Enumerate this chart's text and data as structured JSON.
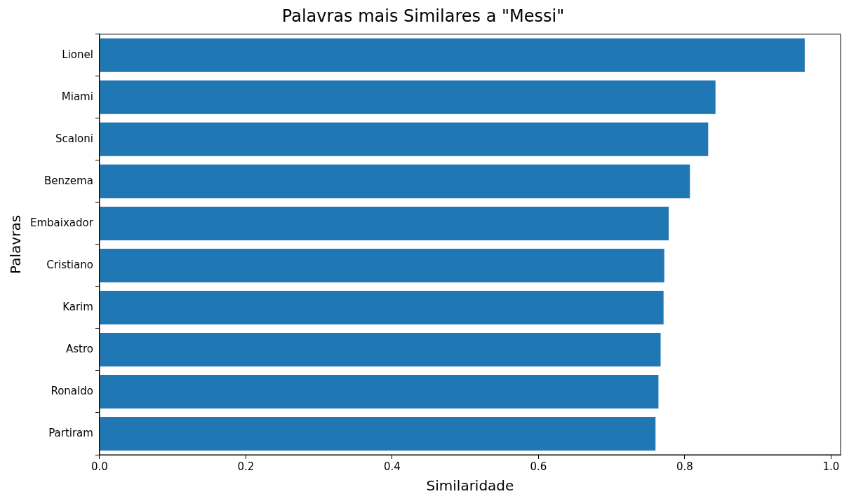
{
  "chart_data": {
    "type": "bar",
    "orientation": "horizontal",
    "title": "Palavras mais Similares a \"Messi\"",
    "xlabel": "Similaridade",
    "ylabel": "Palavras",
    "categories": [
      "Lionel",
      "Miami",
      "Scaloni",
      "Benzema",
      "Embaixador",
      "Cristiano",
      "Karim",
      "Astro",
      "Ronaldo",
      "Partiram"
    ],
    "values": [
      0.964,
      0.842,
      0.832,
      0.807,
      0.778,
      0.772,
      0.771,
      0.767,
      0.764,
      0.76
    ],
    "color": "#1f77b4",
    "xlim": [
      0,
      1.013
    ],
    "xticks": [
      {
        "value": 0,
        "label": "0.0"
      },
      0.2,
      0.4,
      0.6,
      0.8,
      {
        "value": 1,
        "label": "1.0"
      }
    ],
    "grid": false,
    "legend": false
  }
}
